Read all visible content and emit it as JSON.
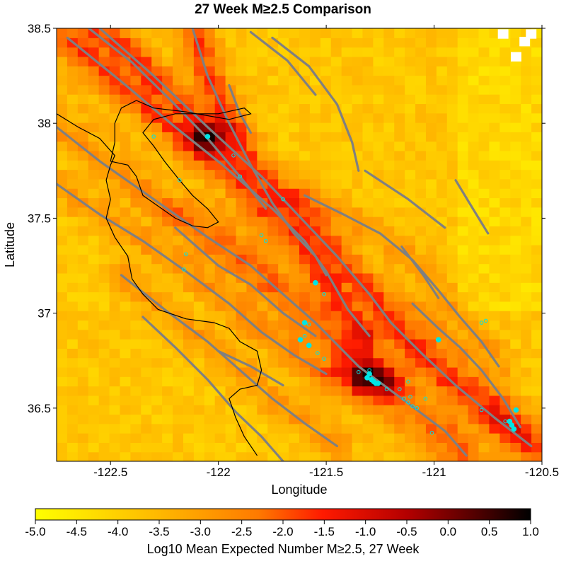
{
  "chart_data": {
    "type": "heatmap",
    "title": "27 Week M≥2.5 Comparison",
    "xlabel": "Longitude",
    "ylabel": "Latitude",
    "xlim": [
      -122.75,
      -120.5
    ],
    "ylim": [
      36.22,
      38.5
    ],
    "x_ticks": [
      -122.5,
      -122,
      -121.5,
      -121,
      -120.5
    ],
    "x_tick_labels": [
      "-122.5",
      "-122",
      "-121.5",
      "-121",
      "-120.5"
    ],
    "y_ticks": [
      36.5,
      37,
      37.5,
      38,
      38.5
    ],
    "y_tick_labels": [
      "36.5",
      "37",
      "37.5",
      "38",
      "38.5"
    ],
    "colorbar": {
      "label": "Log10 Mean Expected Number M≥2.5, 27 Week",
      "range": [
        -5.0,
        1.0
      ],
      "ticks": [
        -5.0,
        -4.5,
        -4.0,
        -3.5,
        -3.0,
        -2.5,
        -2.0,
        -1.5,
        -1.0,
        -0.5,
        0.0,
        0.5,
        1.0
      ],
      "tick_labels": [
        "-5.0",
        "-4.5",
        "-4.0",
        "-3.5",
        "-3.0",
        "-2.5",
        "-2.0",
        "-1.5",
        "-1.0",
        "-0.5",
        "0.0",
        "0.5",
        "1.0"
      ]
    },
    "colors": {
      "faults": "#808080",
      "coastline": "#000000",
      "events": "#00e5e5"
    },
    "events_filled": [
      {
        "lon": -122.05,
        "lat": 37.93
      },
      {
        "lon": -121.55,
        "lat": 37.16
      },
      {
        "lon": -121.6,
        "lat": 36.95
      },
      {
        "lon": -121.62,
        "lat": 36.86
      },
      {
        "lon": -121.58,
        "lat": 36.83
      },
      {
        "lon": -121.3,
        "lat": 36.68
      },
      {
        "lon": -121.31,
        "lat": 36.66
      },
      {
        "lon": -121.29,
        "lat": 36.65
      },
      {
        "lon": -121.28,
        "lat": 36.64
      },
      {
        "lon": -121.27,
        "lat": 36.63
      },
      {
        "lon": -121.26,
        "lat": 36.63
      },
      {
        "lon": -120.98,
        "lat": 36.86
      },
      {
        "lon": -120.62,
        "lat": 36.49
      },
      {
        "lon": -120.65,
        "lat": 36.43
      },
      {
        "lon": -120.64,
        "lat": 36.41
      },
      {
        "lon": -120.63,
        "lat": 36.39
      }
    ],
    "events_open": [
      {
        "lon": -122.3,
        "lat": 37.93
      },
      {
        "lon": -121.93,
        "lat": 37.83
      },
      {
        "lon": -121.9,
        "lat": 37.72
      },
      {
        "lon": -122.18,
        "lat": 37.7
      },
      {
        "lon": -121.7,
        "lat": 37.6
      },
      {
        "lon": -121.8,
        "lat": 37.41
      },
      {
        "lon": -121.78,
        "lat": 37.38
      },
      {
        "lon": -122.15,
        "lat": 37.31
      },
      {
        "lon": -122.16,
        "lat": 37.23
      },
      {
        "lon": -121.51,
        "lat": 37.1
      },
      {
        "lon": -121.58,
        "lat": 36.94
      },
      {
        "lon": -121.6,
        "lat": 36.88
      },
      {
        "lon": -121.54,
        "lat": 36.79
      },
      {
        "lon": -121.51,
        "lat": 36.76
      },
      {
        "lon": -121.35,
        "lat": 36.69
      },
      {
        "lon": -121.3,
        "lat": 36.7
      },
      {
        "lon": -121.22,
        "lat": 36.6
      },
      {
        "lon": -121.16,
        "lat": 36.6
      },
      {
        "lon": -121.12,
        "lat": 36.64
      },
      {
        "lon": -121.14,
        "lat": 36.55
      },
      {
        "lon": -121.11,
        "lat": 36.56
      },
      {
        "lon": -121.12,
        "lat": 36.53
      },
      {
        "lon": -121.1,
        "lat": 36.51
      },
      {
        "lon": -121.04,
        "lat": 36.55
      },
      {
        "lon": -121.08,
        "lat": 36.5
      },
      {
        "lon": -121.01,
        "lat": 36.37
      },
      {
        "lon": -120.78,
        "lat": 36.95
      },
      {
        "lon": -120.76,
        "lat": 36.96
      },
      {
        "lon": -120.78,
        "lat": 36.49
      },
      {
        "lon": -120.67,
        "lat": 36.43
      }
    ]
  }
}
